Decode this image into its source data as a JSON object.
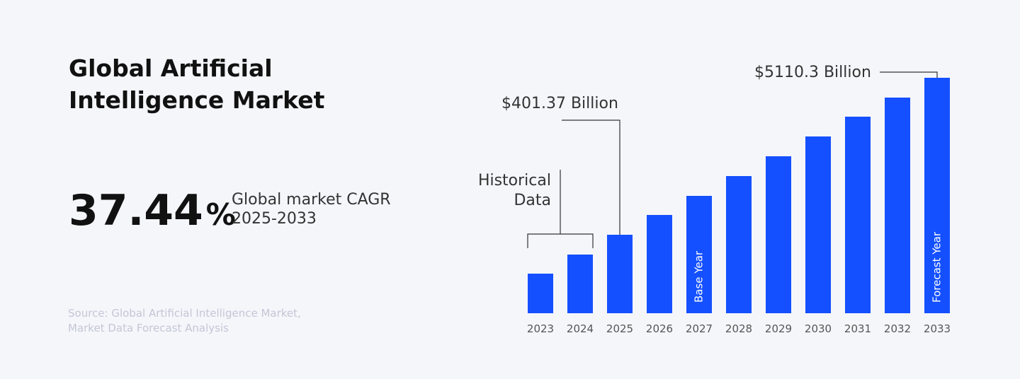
{
  "header": {
    "title_lines": [
      "Global Artificial",
      "Intelligence Market"
    ]
  },
  "cagr": {
    "value": "37.44",
    "unit": "%",
    "label_lines": [
      "Global market CAGR",
      "2025-2033"
    ]
  },
  "source_lines": [
    "Source: Global Artificial Intelligence Market,",
    "Market Data Forecast Analysis"
  ],
  "chart_data": {
    "type": "bar",
    "categories": [
      "2023",
      "2024",
      "2025",
      "2026",
      "2027",
      "2028",
      "2029",
      "2030",
      "2031",
      "2032",
      "2033"
    ],
    "values": [
      56,
      83,
      111,
      139,
      166,
      194,
      222,
      250,
      278,
      305,
      333
    ],
    "ylim": [
      0,
      333
    ],
    "color": "#1450ff",
    "bar_labels": [
      null,
      null,
      null,
      null,
      "Base Year",
      null,
      null,
      null,
      null,
      null,
      "Forecast Year"
    ],
    "historical_lines": [
      "Historical",
      "Data"
    ],
    "callouts": [
      "$401.37 Billion",
      "$5110.3 Billion"
    ]
  }
}
